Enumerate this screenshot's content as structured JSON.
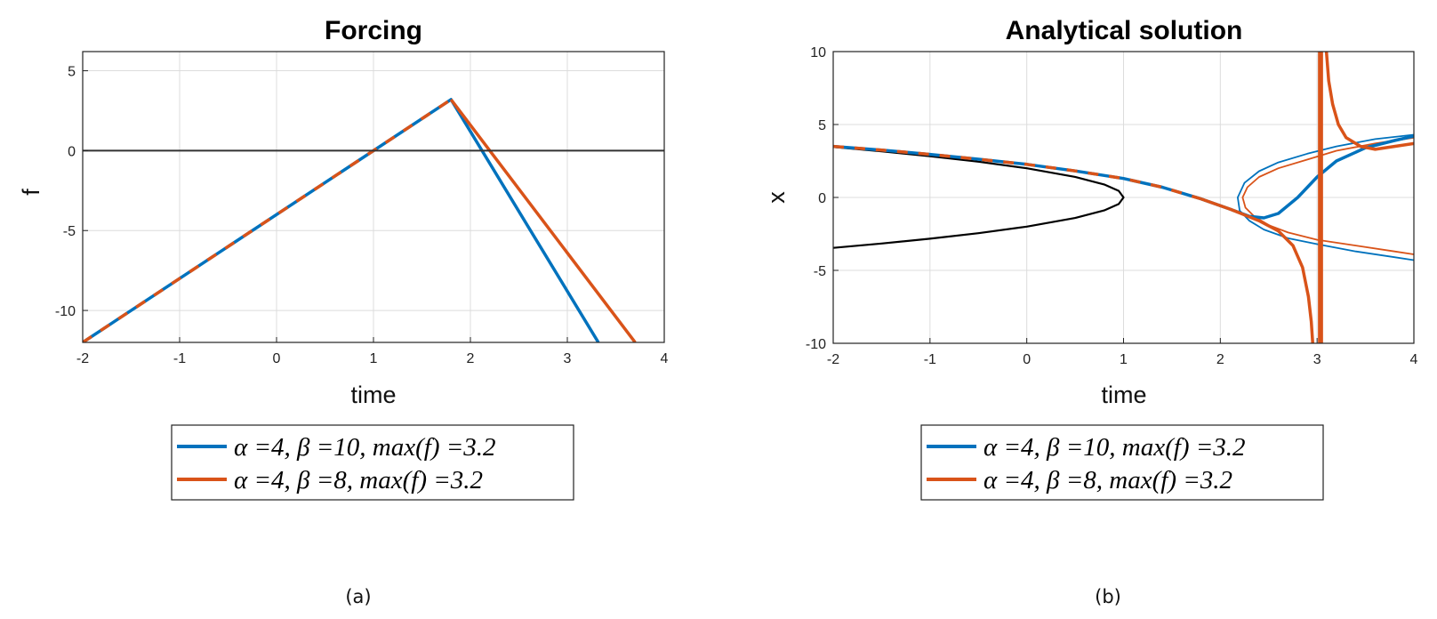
{
  "colors": {
    "blue": "#0072BD",
    "orange": "#D95319",
    "black": "#000000",
    "grid": "#dcdcdc",
    "zero_line": "#333333"
  },
  "chart_data": [
    {
      "type": "line",
      "panel": "a",
      "title": "Forcing",
      "xlabel": "time",
      "ylabel": "f",
      "xlim": [
        -2,
        4
      ],
      "ylim": [
        -12,
        6.2
      ],
      "xticks": [
        -2,
        -1,
        0,
        1,
        2,
        3,
        4
      ],
      "xtick_labels": [
        "-2",
        "-1",
        "0",
        "1",
        "2",
        "3",
        "4"
      ],
      "yticks": [
        -10,
        -5,
        0,
        5
      ],
      "ytick_labels": [
        "-10",
        "-5",
        "0",
        "5"
      ],
      "grid": true,
      "legend_position": "below",
      "caption": "(a)",
      "series": [
        {
          "name": "α =4, β =10, max(f) =3.2",
          "color": "blue",
          "width": 3.5,
          "segments": [
            {
              "x": [
                -2,
                1.8,
                3.32
              ],
              "y": [
                -12,
                3.2,
                -12
              ]
            }
          ]
        },
        {
          "name": "α =4, β =8, max(f) =3.2",
          "color": "orange",
          "width": 3.5,
          "dash": "12,12",
          "segments": [
            {
              "x": [
                -2,
                1.8
              ],
              "y": [
                -12,
                3.2
              ]
            }
          ]
        },
        {
          "color": "orange",
          "width": 3.5,
          "segments": [
            {
              "x": [
                1.8,
                3.7
              ],
              "y": [
                3.2,
                -12
              ]
            }
          ]
        },
        {
          "color": "zero_line",
          "width": 2,
          "segments": [
            {
              "x": [
                -2,
                4
              ],
              "y": [
                0,
                0
              ]
            }
          ]
        }
      ]
    },
    {
      "type": "line",
      "panel": "b",
      "title": "Analytical solution",
      "xlabel": "time",
      "ylabel": "x",
      "xlim": [
        -2,
        4
      ],
      "ylim": [
        -10,
        10
      ],
      "xticks": [
        -2,
        -1,
        0,
        1,
        2,
        3,
        4
      ],
      "xtick_labels": [
        "-2",
        "-1",
        "0",
        "1",
        "2",
        "3",
        "4"
      ],
      "yticks": [
        -10,
        -5,
        0,
        5,
        10
      ],
      "ytick_labels": [
        "-10",
        "-5",
        "0",
        "5",
        "10"
      ],
      "grid": true,
      "legend_position": "below",
      "caption": "(b)",
      "series": [
        {
          "color": "black",
          "width": 2.2,
          "segments": [
            {
              "x": [
                -2,
                -1.5,
                -1,
                -0.5,
                0,
                0.5,
                0.8,
                0.95,
                1,
                0.95,
                0.8,
                0.5,
                0,
                -0.5,
                -1,
                -1.5,
                -2
              ],
              "y": [
                3.46,
                3.16,
                2.83,
                2.45,
                2.0,
                1.41,
                0.89,
                0.45,
                0,
                -0.45,
                -0.89,
                -1.41,
                -2.0,
                -2.45,
                -2.83,
                -3.16,
                -3.46
              ]
            }
          ]
        },
        {
          "color": "blue",
          "width": 1.8,
          "segments": [
            {
              "x": [
                4,
                3.6,
                3.2,
                2.9,
                2.6,
                2.4,
                2.25,
                2.18,
                2.2,
                2.3,
                2.45,
                2.7,
                3.0,
                3.4,
                3.8,
                4
              ],
              "y": [
                4.3,
                4.0,
                3.5,
                3.0,
                2.4,
                1.8,
                1.0,
                0.0,
                -0.9,
                -1.6,
                -2.2,
                -2.8,
                -3.2,
                -3.7,
                -4.1,
                -4.3
              ]
            }
          ]
        },
        {
          "color": "orange",
          "width": 1.8,
          "segments": [
            {
              "x": [
                4,
                3.6,
                3.2,
                2.9,
                2.6,
                2.4,
                2.28,
                2.23,
                2.26,
                2.35,
                2.5,
                2.7,
                3.0,
                3.4,
                3.8,
                4
              ],
              "y": [
                4.1,
                3.7,
                3.2,
                2.6,
                2.0,
                1.4,
                0.7,
                0.0,
                -0.7,
                -1.3,
                -1.9,
                -2.4,
                -2.9,
                -3.3,
                -3.7,
                -3.9
              ]
            }
          ]
        },
        {
          "name": "α =4, β =10, max(f) =3.2",
          "color": "blue",
          "width": 3.5,
          "segments": [
            {
              "x": [
                -2,
                -1.5,
                -1,
                -0.5,
                0,
                0.5,
                1.0,
                1.4,
                1.8,
                2.1,
                2.3,
                2.45,
                2.6,
                2.8,
                3.0,
                3.2,
                3.5,
                3.8,
                4
              ],
              "y": [
                3.5,
                3.25,
                2.95,
                2.62,
                2.27,
                1.82,
                1.3,
                0.7,
                -0.1,
                -0.8,
                -1.3,
                -1.4,
                -1.1,
                0.0,
                1.4,
                2.5,
                3.4,
                3.9,
                4.2
              ]
            }
          ]
        },
        {
          "name": "α =4, β =8, max(f) =3.2",
          "color": "orange",
          "width": 3.5,
          "dash": "12,12",
          "segments": [
            {
              "x": [
                -2,
                -1.5,
                -1,
                -0.5,
                0,
                0.5,
                1.0,
                1.4,
                1.8
              ],
              "y": [
                3.5,
                3.25,
                2.95,
                2.62,
                2.27,
                1.82,
                1.3,
                0.7,
                -0.1
              ]
            }
          ]
        },
        {
          "color": "orange",
          "width": 3.5,
          "segments": [
            {
              "x": [
                1.8,
                2.1,
                2.4,
                2.6,
                2.75,
                2.85,
                2.91,
                2.94,
                2.96
              ],
              "y": [
                -0.1,
                -0.8,
                -1.6,
                -2.3,
                -3.3,
                -4.8,
                -6.8,
                -8.5,
                -10.5
              ]
            },
            {
              "x": [
                3.09,
                3.12,
                3.16,
                3.22,
                3.3,
                3.45,
                3.6,
                3.8,
                4
              ],
              "y": [
                10.5,
                8.0,
                6.4,
                5.0,
                4.1,
                3.5,
                3.3,
                3.5,
                3.7
              ]
            },
            {
              "x": [
                3.025,
                3.025
              ],
              "y": [
                10.5,
                -10.5
              ]
            },
            {
              "x": [
                3.045,
                3.045
              ],
              "y": [
                10.5,
                -10.5
              ]
            }
          ]
        }
      ]
    }
  ],
  "legend": {
    "items": [
      {
        "label": "α =4, β =10, max(f) =3.2",
        "color": "blue"
      },
      {
        "label": "α =4, β =8, max(f) =3.2",
        "color": "orange"
      }
    ]
  }
}
